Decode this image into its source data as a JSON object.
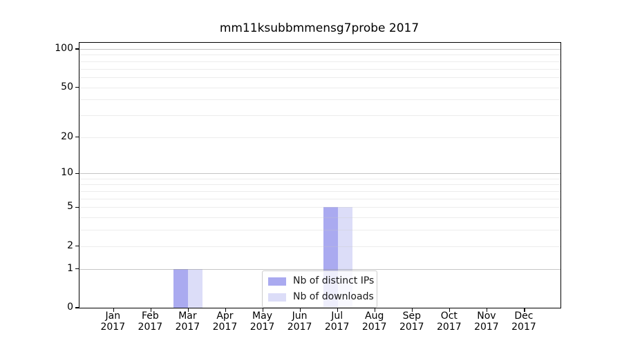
{
  "chart_data": {
    "type": "bar",
    "title": "mm11ksubbmmensg7probe 2017",
    "categories": [
      "Jan",
      "Feb",
      "Mar",
      "Apr",
      "May",
      "Jun",
      "Jul",
      "Aug",
      "Sep",
      "Oct",
      "Nov",
      "Dec"
    ],
    "category_year": "2017",
    "series": [
      {
        "name": "Nb of distinct IPs",
        "color": "#aaaaf0",
        "values": [
          0,
          0,
          1,
          0,
          0,
          0,
          5,
          0,
          0,
          0,
          0,
          0
        ]
      },
      {
        "name": "Nb of downloads",
        "color": "#dcddf8",
        "values": [
          0,
          0,
          1,
          0,
          0,
          0,
          5,
          0,
          0,
          0,
          0,
          0
        ]
      }
    ],
    "y_axis": {
      "scale": "log1p",
      "ticks": [
        0,
        1,
        2,
        5,
        10,
        20,
        50,
        100
      ],
      "ylim": [
        0,
        112
      ]
    },
    "x_axis": {
      "label_lines": 2
    },
    "grid": {
      "major_values": [
        1,
        10,
        100
      ],
      "minor_values": [
        2,
        3,
        4,
        5,
        6,
        7,
        8,
        9,
        20,
        30,
        40,
        50,
        60,
        70,
        80,
        90
      ],
      "major_color": "rgba(150,150,150,0.55)",
      "minor_color": "rgba(200,200,200,0.35)"
    },
    "legend": {
      "position": "lower center"
    },
    "colors": {
      "axis": "#000000",
      "background": "#ffffff"
    }
  }
}
